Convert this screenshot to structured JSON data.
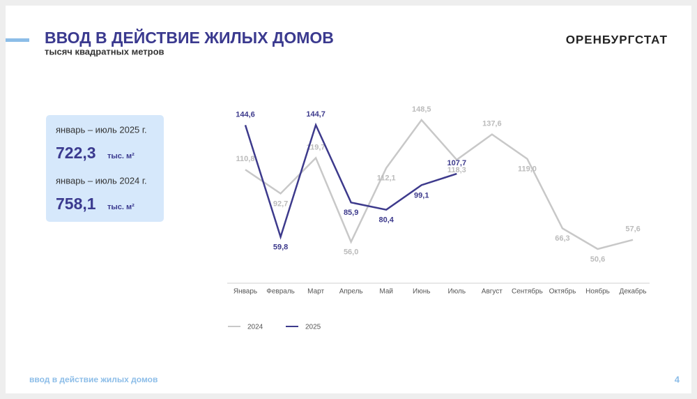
{
  "header": {
    "title": "ВВОД В ДЕЙСТВИЕ ЖИЛЫХ ДОМОВ",
    "subtitle": "тысяч квадратных метров",
    "logo": "ОРЕНБУРГСТАТ"
  },
  "summary": [
    {
      "period": "январь – июль 2025 г.",
      "value": "722,3",
      "unit": "тыс. м²"
    },
    {
      "period": "январь – июль 2024 г.",
      "value": "758,1",
      "unit": "тыс. м²"
    }
  ],
  "chart_data": {
    "type": "line",
    "categories": [
      "Январь",
      "Февраль",
      "Март",
      "Апрель",
      "Май",
      "Июнь",
      "Июль",
      "Август",
      "Сентябрь",
      "Октябрь",
      "Ноябрь",
      "Декабрь"
    ],
    "series": [
      {
        "name": "2024",
        "color": "#c8c8c8",
        "values": [
          110.8,
          92.7,
          119.7,
          56.0,
          112.1,
          148.5,
          118.3,
          137.6,
          119.0,
          66.3,
          50.6,
          57.6
        ],
        "value_labels": [
          "110,8",
          "92,7",
          "119,7",
          "56,0",
          "112,1",
          "148,5",
          "118,3",
          "137,6",
          "119,0",
          "66,3",
          "50,6",
          "57,6"
        ]
      },
      {
        "name": "2025",
        "color": "#3d3a8c",
        "values": [
          144.6,
          59.8,
          144.7,
          85.9,
          80.4,
          99.1,
          107.7,
          null,
          null,
          null,
          null,
          null
        ],
        "value_labels": [
          "144,6",
          "59,8",
          "144,7",
          "85,9",
          "80,4",
          "99,1",
          "107,7",
          null,
          null,
          null,
          null,
          null
        ]
      }
    ]
  },
  "footer": {
    "text": "ввод в действие жилых домов",
    "page": "4"
  }
}
